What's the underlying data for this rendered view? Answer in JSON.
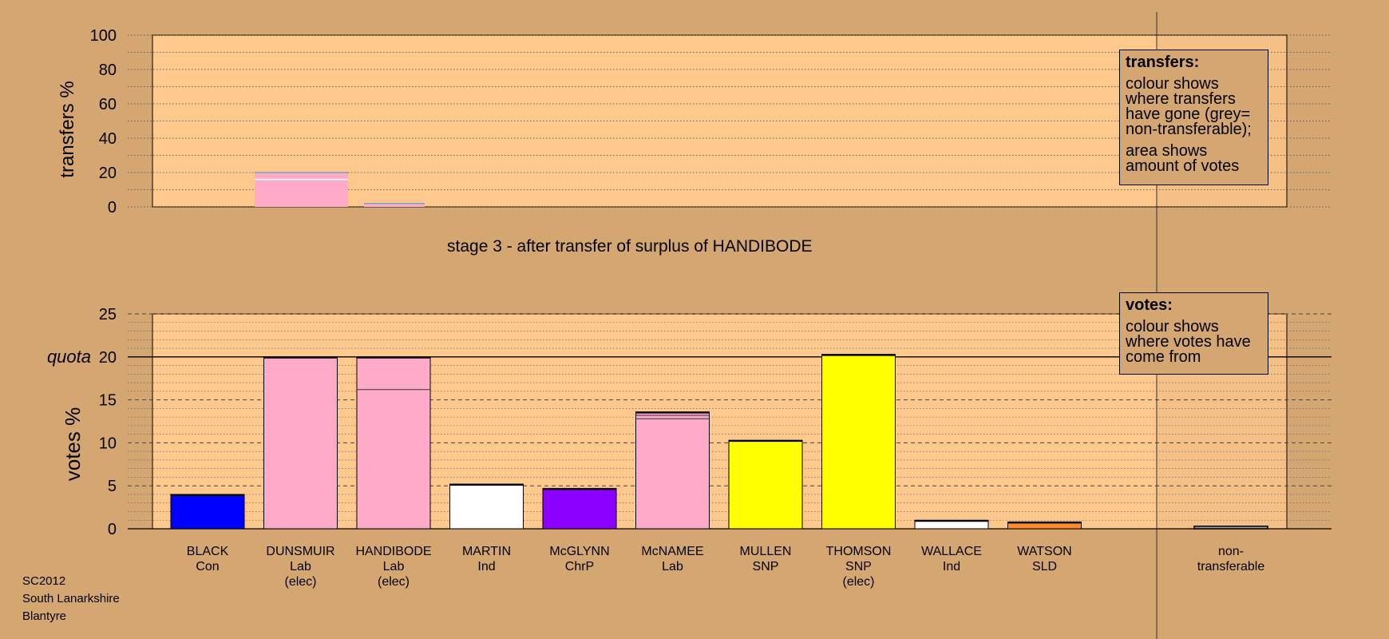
{
  "stage_caption": "stage 3 - after transfer of surplus of HANDIBODE",
  "footer": {
    "election": "SC2012",
    "council": "South Lanarkshire",
    "ward": "Blantyre"
  },
  "legend_transfers": {
    "title": "transfers:",
    "line1": "colour shows where transfers have gone (grey= non-transferable);",
    "line2": "area shows amount of votes"
  },
  "legend_votes": {
    "title": "votes:",
    "line1": "colour shows where votes have come from"
  },
  "colors": {
    "background": "#d4a671",
    "panel": "#ffc88c"
  },
  "chart_data": [
    {
      "type": "bar",
      "title": "",
      "ylabel": "transfers %",
      "ylim": [
        0,
        100
      ],
      "yticks": [
        0,
        20,
        40,
        60,
        80,
        100
      ],
      "grid": true,
      "bars": [
        {
          "category": "DUNSMUIR",
          "value": 20,
          "color": "#ffaac8"
        },
        {
          "category": "McNAMEE",
          "value": 2,
          "color": "#ffaac8"
        }
      ]
    },
    {
      "type": "bar",
      "title": "",
      "ylabel": "votes %",
      "ylim": [
        0,
        25
      ],
      "yticks": [
        0,
        5,
        10,
        15,
        20,
        25
      ],
      "quota": {
        "label": "quota",
        "value": 20
      },
      "grid": true,
      "categories": [
        {
          "name": "BLACK",
          "party": "Con",
          "elected": "",
          "value": 4.0,
          "color": "#0000ff"
        },
        {
          "name": "DUNSMUIR",
          "party": "Lab",
          "elected": "(elec)",
          "value": 20.0,
          "color": "#ffaac8"
        },
        {
          "name": "HANDIBODE",
          "party": "Lab",
          "elected": "(elec)",
          "value": 20.0,
          "color": "#ffaac8",
          "segments": [
            16.2,
            3.8
          ]
        },
        {
          "name": "MARTIN",
          "party": "Ind",
          "elected": "",
          "value": 5.2,
          "color": "#ffffff"
        },
        {
          "name": "McGLYNN",
          "party": "ChrP",
          "elected": "",
          "value": 4.7,
          "color": "#8b00ff"
        },
        {
          "name": "McNAMEE",
          "party": "Lab",
          "elected": "",
          "value": 13.6,
          "color": "#ffaac8",
          "segments": [
            12.8,
            0.4,
            0.4
          ]
        },
        {
          "name": "MULLEN",
          "party": "SNP",
          "elected": "",
          "value": 10.3,
          "color": "#ffff00"
        },
        {
          "name": "THOMSON",
          "party": "SNP",
          "elected": "(elec)",
          "value": 20.3,
          "color": "#ffff00"
        },
        {
          "name": "WALLACE",
          "party": "Ind",
          "elected": "",
          "value": 1.0,
          "color": "#ffffff"
        },
        {
          "name": "WATSON",
          "party": "SLD",
          "elected": "",
          "value": 0.8,
          "color": "#ff8c28"
        }
      ],
      "nontransferable": {
        "label1": "non-",
        "label2": "transferable",
        "value": 0.3,
        "color": "#a0a0a0"
      }
    }
  ]
}
